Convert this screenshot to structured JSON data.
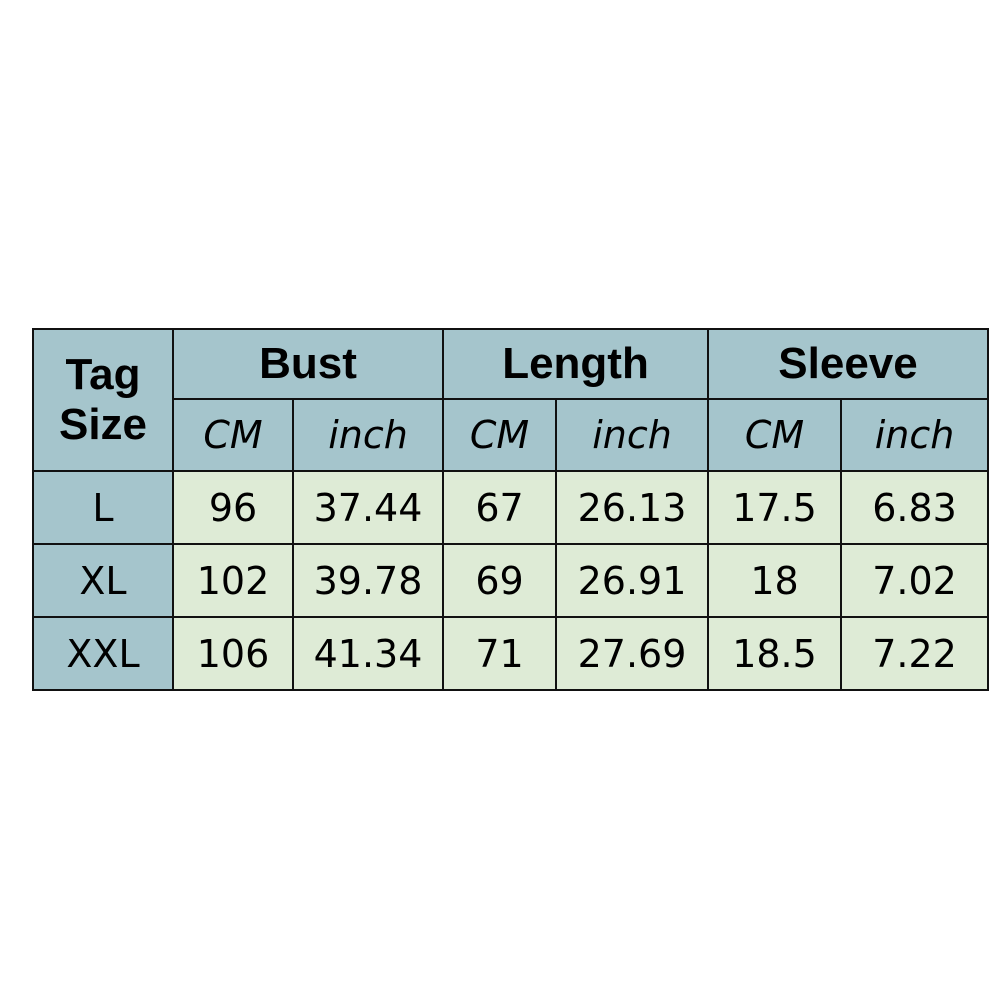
{
  "header": {
    "tag_size": [
      "Tag",
      "Size"
    ],
    "groups": [
      "Bust",
      "Length",
      "Sleeve"
    ],
    "units": [
      "CM",
      "inch",
      "CM",
      "inch",
      "CM",
      "inch"
    ]
  },
  "rows": [
    {
      "size": "L",
      "values": [
        "96",
        "37.44",
        "67",
        "26.13",
        "17.5",
        "6.83"
      ]
    },
    {
      "size": "XL",
      "values": [
        "102",
        "39.78",
        "69",
        "26.91",
        "18",
        "7.02"
      ]
    },
    {
      "size": "XXL",
      "values": [
        "106",
        "41.34",
        "71",
        "27.69",
        "18.5",
        "7.22"
      ]
    }
  ],
  "colors": {
    "header": "#a5c5cc",
    "cells": "#deebd6",
    "border": "#111111"
  }
}
